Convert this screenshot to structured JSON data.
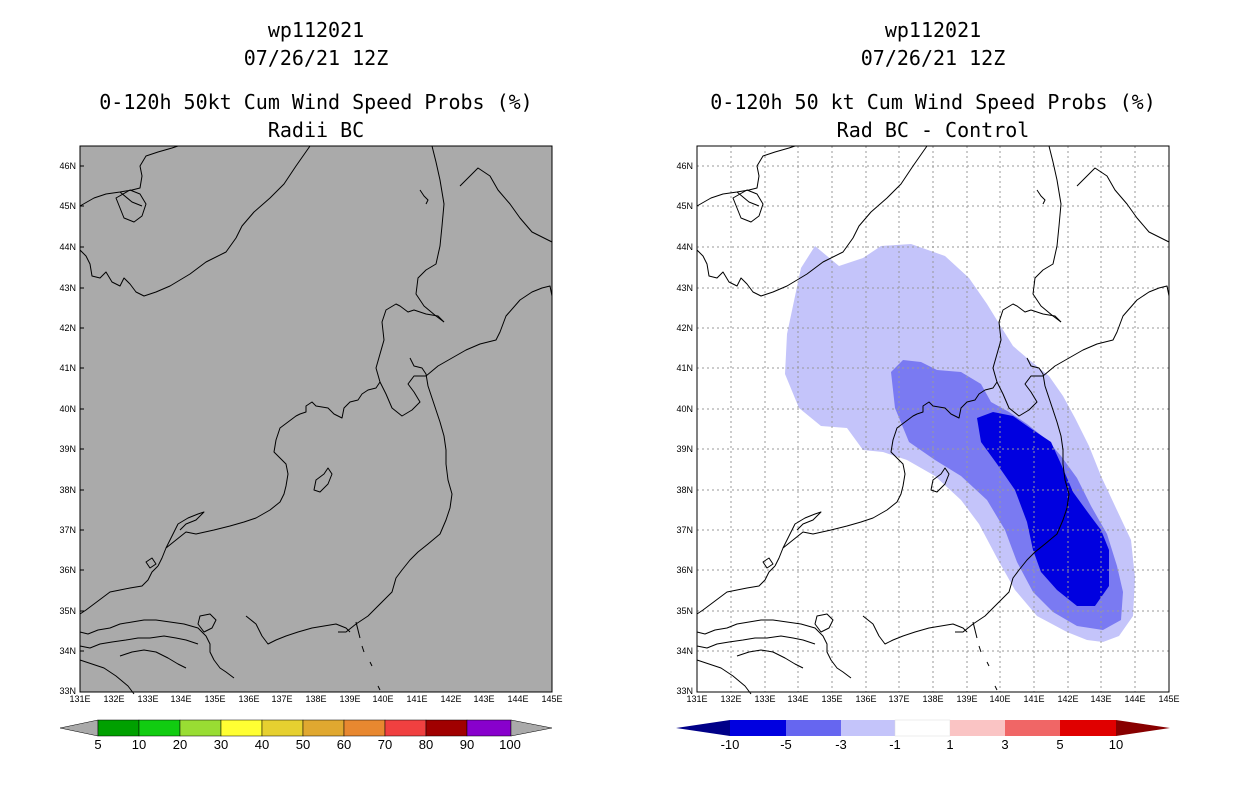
{
  "left_panel": {
    "title1": "wp112021",
    "title2": "07/26/21 12Z",
    "title3": "0-120h 50kt Cum Wind Speed Probs (%)",
    "title4": "Radii BC",
    "background_color": "#aaaaaa",
    "colorbar": {
      "labels": [
        "5",
        "10",
        "20",
        "30",
        "40",
        "50",
        "60",
        "70",
        "80",
        "90",
        "100"
      ],
      "colors": [
        "#00a000",
        "#11cc11",
        "#99dd33",
        "#ffff33",
        "#e6d030",
        "#e0a830",
        "#e88830",
        "#f04040",
        "#a00000",
        "#8800cc"
      ],
      "end_color": "#aaaaaa"
    }
  },
  "right_panel": {
    "title1": "wp112021",
    "title2": "07/26/21 12Z",
    "title3": "0-120h 50 kt Cum Wind Speed Probs (%)",
    "title4": "Rad BC - Control",
    "colorbar": {
      "labels": [
        "-10",
        "-5",
        "-3",
        "-1",
        "1",
        "3",
        "5",
        "10"
      ],
      "colors": [
        "#0000e0",
        "#6666f0",
        "#c4c4fa",
        "#ffffff",
        "#fac4c4",
        "#f06666",
        "#e00000"
      ],
      "end_left": "#000088",
      "end_right": "#880000"
    },
    "shading_colors": {
      "minus1_to_minus3": "#c4c4fa",
      "minus3_to_minus5": "#7a7af2",
      "minus5_to_minus10": "#0000e0"
    }
  },
  "map": {
    "lat_labels": [
      "46N",
      "45N",
      "44N",
      "43N",
      "42N",
      "41N",
      "40N",
      "39N",
      "38N",
      "37N",
      "36N",
      "35N",
      "34N",
      "33N"
    ],
    "lon_labels": [
      "131E",
      "132E",
      "133E",
      "134E",
      "135E",
      "136E",
      "137E",
      "138E",
      "139E",
      "140E",
      "141E",
      "142E",
      "143E",
      "144E",
      "145E"
    ]
  }
}
